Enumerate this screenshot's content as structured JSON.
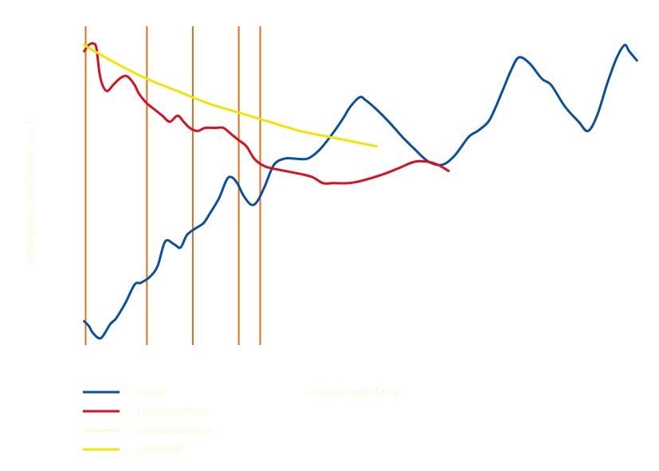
{
  "chart_data": {
    "type": "line",
    "title": "",
    "xlabel": "Wavelength     [nm]",
    "ylabel": "absorption coefficient  [a.u.]",
    "text_color": "#FFF8DC",
    "xlim": [
      400,
      750
    ],
    "ylim": [
      0,
      1
    ],
    "vlines": {
      "color": "#E07020",
      "x": [
        400,
        440,
        470,
        500,
        514
      ]
    },
    "series": [
      {
        "name": "water",
        "color": "#0A4FA0",
        "points": [
          [
            399,
            0.07
          ],
          [
            402,
            0.055
          ],
          [
            405,
            0.03
          ],
          [
            410,
            0.015
          ],
          [
            416,
            0.06
          ],
          [
            420,
            0.08
          ],
          [
            426,
            0.13
          ],
          [
            432,
            0.19
          ],
          [
            436,
            0.195
          ],
          [
            442,
            0.215
          ],
          [
            447,
            0.25
          ],
          [
            452,
            0.33
          ],
          [
            458,
            0.32
          ],
          [
            462,
            0.31
          ],
          [
            466,
            0.35
          ],
          [
            471,
            0.37
          ],
          [
            477,
            0.39
          ],
          [
            481,
            0.42
          ],
          [
            487,
            0.47
          ],
          [
            492,
            0.53
          ],
          [
            495,
            0.54
          ],
          [
            499,
            0.52
          ],
          [
            503,
            0.48
          ],
          [
            508,
            0.45
          ],
          [
            512,
            0.46
          ],
          [
            517,
            0.51
          ],
          [
            523,
            0.58
          ],
          [
            530,
            0.6
          ],
          [
            536,
            0.6
          ],
          [
            545,
            0.6
          ],
          [
            553,
            0.63
          ],
          [
            561,
            0.68
          ],
          [
            568,
            0.73
          ],
          [
            573,
            0.77
          ],
          [
            579,
            0.8
          ],
          [
            583,
            0.79
          ],
          [
            590,
            0.76
          ],
          [
            598,
            0.72
          ],
          [
            607,
            0.67
          ],
          [
            615,
            0.63
          ],
          [
            624,
            0.59
          ],
          [
            633,
            0.58
          ],
          [
            641,
            0.61
          ],
          [
            650,
            0.67
          ],
          [
            656,
            0.69
          ],
          [
            663,
            0.72
          ],
          [
            668,
            0.77
          ],
          [
            673,
            0.83
          ],
          [
            678,
            0.89
          ],
          [
            683,
            0.93
          ],
          [
            690,
            0.91
          ],
          [
            698,
            0.86
          ],
          [
            704,
            0.84
          ],
          [
            713,
            0.77
          ],
          [
            722,
            0.72
          ],
          [
            728,
            0.69
          ],
          [
            734,
            0.74
          ],
          [
            741,
            0.85
          ],
          [
            747,
            0.93
          ],
          [
            752,
            0.97
          ],
          [
            755,
            0.95
          ],
          [
            760,
            0.92
          ]
        ]
      },
      {
        "name": "phycoerythrin",
        "color": "#D81020",
        "points": [
          [
            399,
            0.95
          ],
          [
            402,
            0.97
          ],
          [
            405,
            0.975
          ],
          [
            407,
            0.96
          ],
          [
            409,
            0.88
          ],
          [
            411,
            0.84
          ],
          [
            414,
            0.82
          ],
          [
            418,
            0.84
          ],
          [
            422,
            0.86
          ],
          [
            426,
            0.87
          ],
          [
            429,
            0.86
          ],
          [
            432,
            0.84
          ],
          [
            435,
            0.81
          ],
          [
            440,
            0.78
          ],
          [
            445,
            0.76
          ],
          [
            450,
            0.74
          ],
          [
            455,
            0.72
          ],
          [
            460,
            0.74
          ],
          [
            464,
            0.72
          ],
          [
            468,
            0.7
          ],
          [
            473,
            0.69
          ],
          [
            478,
            0.7
          ],
          [
            485,
            0.7
          ],
          [
            490,
            0.7
          ],
          [
            495,
            0.68
          ],
          [
            500,
            0.66
          ],
          [
            505,
            0.64
          ],
          [
            510,
            0.6
          ],
          [
            515,
            0.58
          ],
          [
            520,
            0.57
          ],
          [
            530,
            0.56
          ],
          [
            540,
            0.55
          ],
          [
            548,
            0.54
          ],
          [
            555,
            0.52
          ],
          [
            562,
            0.52
          ],
          [
            572,
            0.52
          ],
          [
            582,
            0.53
          ],
          [
            595,
            0.55
          ],
          [
            605,
            0.57
          ],
          [
            615,
            0.59
          ],
          [
            623,
            0.59
          ],
          [
            630,
            0.58
          ],
          [
            637,
            0.56
          ]
        ]
      },
      {
        "name": "phytoplankton",
        "color": "#FFF8DC",
        "points": []
      },
      {
        "name": "gelbstoff",
        "color": "#F5E400",
        "points": [
          [
            399,
            0.97
          ],
          [
            420,
            0.91
          ],
          [
            440,
            0.86
          ],
          [
            460,
            0.82
          ],
          [
            480,
            0.78
          ],
          [
            500,
            0.75
          ],
          [
            520,
            0.72
          ],
          [
            540,
            0.69
          ],
          [
            560,
            0.67
          ],
          [
            580,
            0.65
          ],
          [
            590,
            0.64
          ]
        ]
      }
    ]
  }
}
